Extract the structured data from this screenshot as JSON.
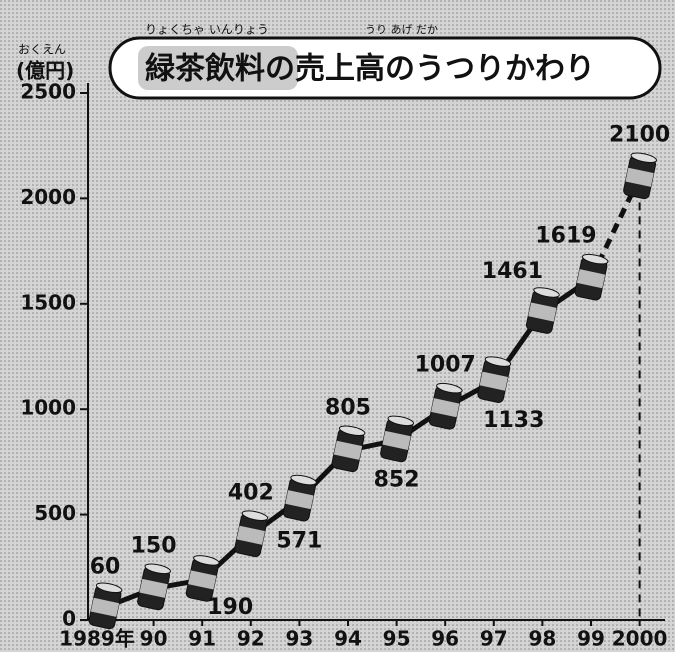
{
  "chart_data": {
    "type": "line",
    "title": "緑茶飲料の売上高のうつりかわり",
    "title_ruby": [
      "りょくちゃ いんりょう",
      "うり あげ だか"
    ],
    "y_label": "(億円)",
    "y_label_ruby": "おくえん",
    "categories": [
      "1989年",
      "90",
      "91",
      "92",
      "93",
      "94",
      "95",
      "96",
      "97",
      "98",
      "99",
      "2000"
    ],
    "values": [
      60,
      150,
      190,
      402,
      571,
      805,
      852,
      1007,
      1133,
      1461,
      1619,
      2100
    ],
    "color": "#111111",
    "ylim": [
      0,
      2500
    ],
    "yticks": [
      0,
      500,
      1000,
      1500,
      2000,
      2500
    ]
  }
}
